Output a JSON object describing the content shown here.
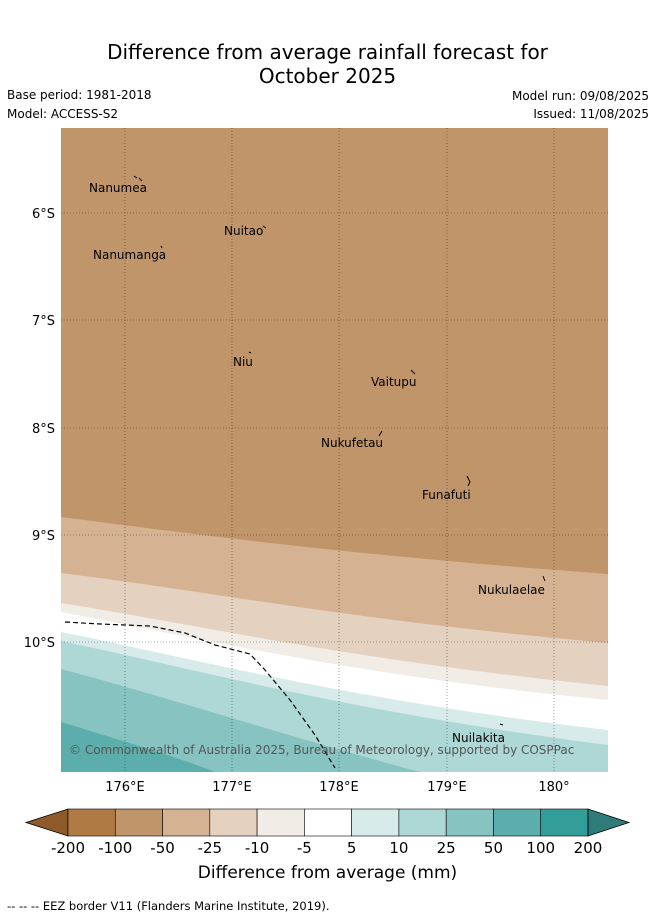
{
  "header": {
    "title_line1": "Difference from average rainfall forecast for",
    "title_line2": "October 2025",
    "base_period": "Base period: 1981-2018",
    "model": "Model: ACCESS-S2",
    "model_run": "Model run: 09/08/2025",
    "issued": "Issued: 11/08/2025"
  },
  "map": {
    "lat_labels": [
      "6°S",
      "7°S",
      "8°S",
      "9°S",
      "10°S"
    ],
    "lon_labels": [
      "176°E",
      "177°E",
      "178°E",
      "179°E",
      "180°"
    ],
    "places": [
      "Nanumea",
      "Nuitao",
      "Nanumanga",
      "Niu",
      "Vaitupu",
      "Nukufetau",
      "Funafuti",
      "Nukulaelae",
      "Nuilakita"
    ],
    "copyright": "© Commonwealth of Australia 2025, Bureau of Meteorology, supported by COSPPac"
  },
  "colorbar": {
    "ticks": [
      "-200",
      "-100",
      "-50",
      "-25",
      "-10",
      "-5",
      "5",
      "10",
      "25",
      "50",
      "100",
      "200"
    ],
    "colors": [
      "#8f5a2a",
      "#b07a45",
      "#c0956a",
      "#d4b292",
      "#e4d1bf",
      "#f1ece6",
      "#ffffff",
      "#d6ebea",
      "#aed8d6",
      "#87c3c1",
      "#5caeac",
      "#339d9a",
      "#2e7b7a"
    ],
    "title": "Difference from average (mm)"
  },
  "footer": {
    "eez_note": "-- -- -- EEZ border V11 (Flanders Marine Institute, 2019)."
  }
}
